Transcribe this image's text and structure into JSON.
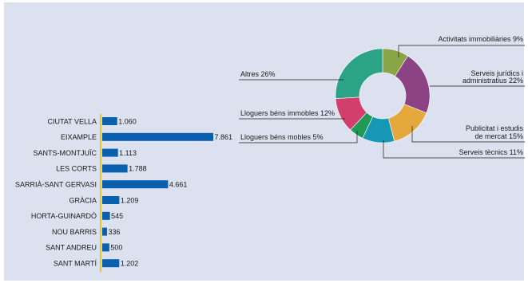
{
  "chart_data": [
    {
      "type": "bar",
      "orientation": "horizontal",
      "categories": [
        "CIUTAT VELLA",
        "EIXAMPLE",
        "SANTS-MONTJUÏC",
        "LES CORTS",
        "SARRIÀ-SANT GERVASI",
        "GRÀCIA",
        "HORTA-GUINARDÓ",
        "NOU BARRIS",
        "SANT ANDREU",
        "SANT MARTÍ"
      ],
      "values": [
        1060,
        7861,
        1113,
        1788,
        4661,
        1209,
        545,
        336,
        500,
        1202
      ],
      "value_labels": [
        "1.060",
        "7.861",
        "1.113",
        "1.788",
        "4.661",
        "1.209",
        "545",
        "336",
        "500",
        "1.202"
      ],
      "colors": {
        "bar": "#0a5fae",
        "axis": "#e3c63a"
      },
      "xlim": [
        0,
        7861
      ]
    },
    {
      "type": "pie",
      "style": "donut",
      "slices": [
        {
          "label": "Activitats immobiliàries",
          "pct_label": "9%",
          "value": 9,
          "color": "#8aa547"
        },
        {
          "label": "Serveis jurídics i administratius",
          "lines": [
            "Serveis jurídics i",
            "administratius 22%"
          ],
          "pct_label": "22%",
          "value": 22,
          "color": "#8b4384"
        },
        {
          "label": "Publicitat i estudis de mercat",
          "lines": [
            "Publicitat i estudis",
            "de mercat 15%"
          ],
          "pct_label": "15%",
          "value": 15,
          "color": "#e4a83c"
        },
        {
          "label": "Serveis tècnics",
          "pct_label": "11%",
          "value": 11,
          "color": "#1697b5"
        },
        {
          "label": "Lloguers béns mobles",
          "pct_label": "5%",
          "value": 5,
          "color": "#1f9b55"
        },
        {
          "label": "Lloguers béns immobles",
          "pct_label": "12%",
          "value": 12,
          "color": "#d23f6c"
        },
        {
          "label": "Altres",
          "pct_label": "26%",
          "value": 26,
          "color": "#2aa386"
        }
      ]
    }
  ]
}
